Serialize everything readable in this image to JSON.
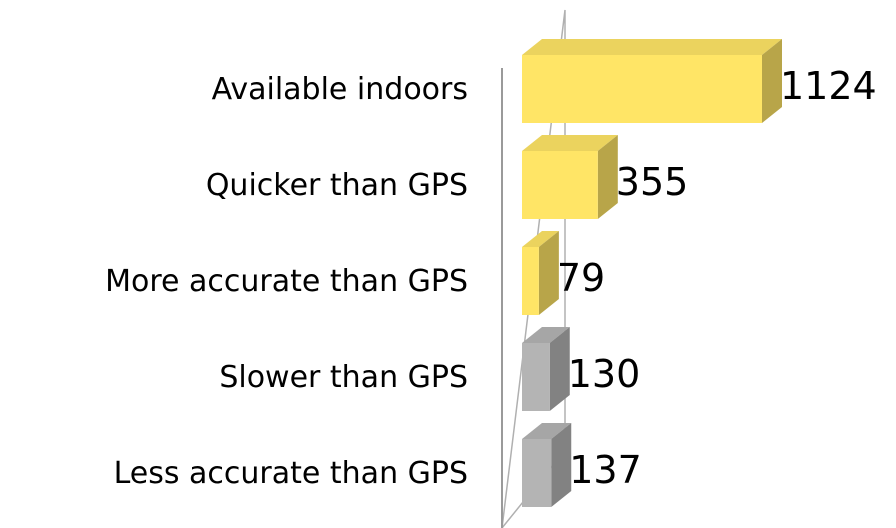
{
  "chart_data": {
    "type": "bar",
    "orientation": "horizontal",
    "style": "3d",
    "categories": [
      "Available indoors",
      "Quicker than GPS",
      "More accurate than GPS",
      "Slower than GPS",
      "Less accurate than GPS"
    ],
    "values": [
      1124,
      355,
      79,
      130,
      137
    ],
    "data_labels": [
      "1124",
      "355",
      "79",
      "130",
      "137"
    ],
    "bar_colors": [
      "#FFE566",
      "#FFE566",
      "#FFE566",
      "#B4B4B4",
      "#B4B4B4"
    ],
    "xlim": [
      0,
      1124
    ],
    "title": "",
    "xlabel": "",
    "ylabel": "",
    "legend": "none",
    "grid": false
  }
}
